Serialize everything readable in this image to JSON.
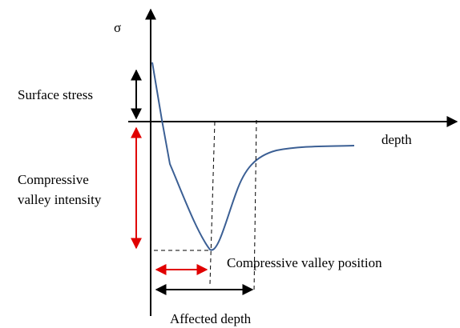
{
  "axis_labels": {
    "y": "σ",
    "x": "depth"
  },
  "annotations": {
    "surface_stress": "Surface stress",
    "valley_intensity": [
      "Compressive",
      "valley intensity"
    ],
    "valley_position": "Compressive valley position",
    "affected_depth": "Affected depth"
  }
}
